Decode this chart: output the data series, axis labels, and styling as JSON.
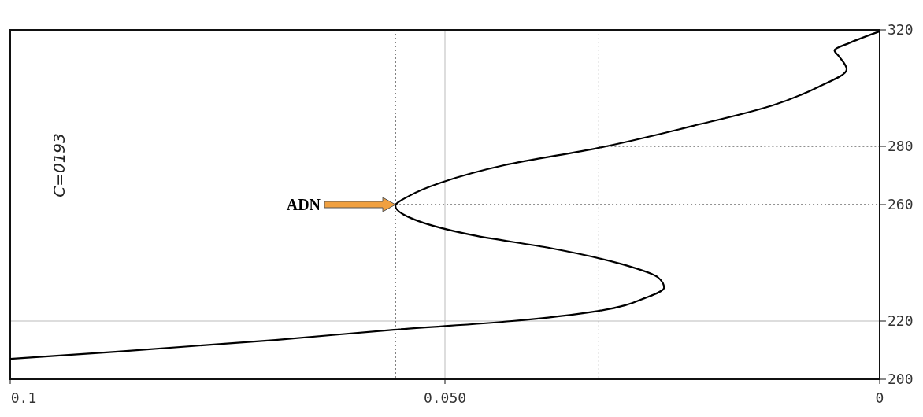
{
  "chart_data": {
    "type": "line",
    "x": [
      0.1,
      0.0876,
      0.0695,
      0.0559,
      0.0423,
      0.0323,
      0.0269,
      0.0248,
      0.0255,
      0.0296,
      0.0378,
      0.0468,
      0.0532,
      0.0557,
      0.0541,
      0.0505,
      0.0432,
      0.0323,
      0.0215,
      0.0124,
      0.007,
      0.0038,
      0.0047,
      0.0052,
      0.0035,
      0
    ],
    "series": [
      {
        "color": "#000000",
        "values": [
          207,
          209.5,
          213.5,
          217,
          220,
          223.5,
          228,
          231.5,
          235,
          239.5,
          245,
          249.5,
          254.5,
          259.5,
          263,
          267.5,
          273.5,
          279.5,
          287,
          294,
          300.5,
          306.5,
          311,
          313,
          315.5,
          319.5
        ]
      }
    ],
    "xlim": [
      0.1,
      0
    ],
    "xticks": [
      {
        "value": 0.1,
        "label": "0.1"
      },
      {
        "value": 0.05,
        "label": "0.050"
      },
      0
    ],
    "ylim": [
      200,
      320
    ],
    "yticks": [
      200,
      220,
      260,
      280,
      320
    ],
    "grid": true,
    "ref_lines": [
      {
        "axis": "y",
        "value": 260,
        "line_style": "dotted"
      },
      {
        "axis": "y",
        "value": 280,
        "line_style": "dotted"
      },
      {
        "axis": "x",
        "value": 0.0557,
        "line_style": "dotted"
      },
      {
        "axis": "x",
        "value": 0.0323,
        "line_style": "dotted"
      }
    ],
    "annotations": [
      "ADN",
      "C=0193"
    ]
  }
}
